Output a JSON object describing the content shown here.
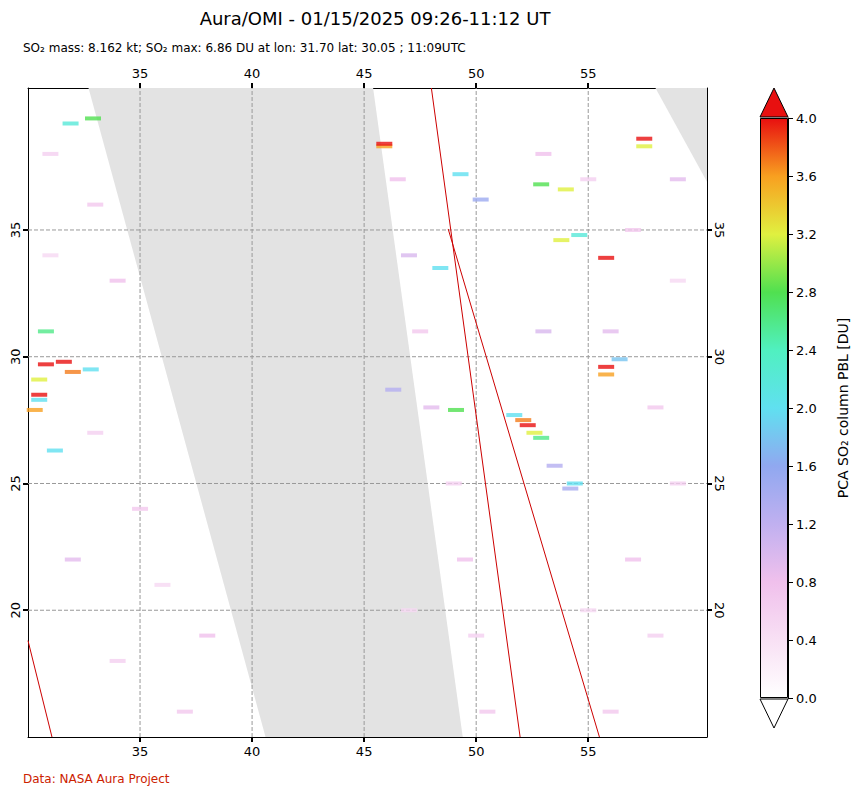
{
  "chart_data": {
    "type": "map",
    "title": "Aura/OMI - 01/15/2025 09:26-11:12 UT",
    "subtitle": "SO₂ mass: 8.162 kt; SO₂ max: 6.86 DU at lon: 31.70 lat: 30.05 ; 11:09UTC",
    "footer": "Data: NASA Aura Project",
    "xlim": [
      30,
      60.3
    ],
    "ylim": [
      15,
      40.6
    ],
    "xticks": [
      35,
      40,
      45,
      50,
      55
    ],
    "yticks": [
      20,
      25,
      30,
      35
    ],
    "grid": true,
    "cells": [
      [
        52.3,
        27.3,
        4.0
      ],
      [
        52.1,
        27.5,
        3.7
      ],
      [
        52.6,
        27.0,
        3.2
      ],
      [
        52.9,
        26.8,
        2.6
      ],
      [
        51.7,
        27.7,
        2.0
      ],
      [
        55.8,
        29.6,
        4.0
      ],
      [
        55.8,
        29.3,
        3.6
      ],
      [
        30.8,
        29.7,
        4.0
      ],
      [
        31.6,
        29.8,
        4.0
      ],
      [
        32.0,
        29.4,
        3.7
      ],
      [
        30.5,
        29.1,
        3.2
      ],
      [
        30.5,
        28.5,
        4.0
      ],
      [
        30.3,
        27.9,
        3.6
      ],
      [
        30.5,
        28.3,
        2.0
      ],
      [
        32.8,
        29.5,
        2.0
      ],
      [
        32.9,
        39.4,
        2.8
      ],
      [
        31.9,
        39.2,
        2.2
      ],
      [
        45.9,
        38.3,
        3.6
      ],
      [
        45.9,
        38.4,
        4.0
      ],
      [
        57.5,
        38.6,
        4.0
      ],
      [
        57.5,
        38.3,
        3.2
      ],
      [
        52.9,
        36.8,
        2.8
      ],
      [
        54.0,
        36.6,
        3.2
      ],
      [
        53.8,
        34.6,
        3.2
      ],
      [
        55.8,
        33.9,
        4.0
      ],
      [
        49.3,
        37.2,
        2.0
      ],
      [
        50.2,
        36.2,
        1.5
      ],
      [
        49.1,
        27.9,
        2.8
      ],
      [
        48.4,
        33.5,
        2.0
      ],
      [
        56.4,
        29.9,
        1.8
      ],
      [
        54.4,
        25.0,
        2.0
      ],
      [
        54.2,
        24.8,
        1.4
      ],
      [
        53.5,
        25.7,
        1.3
      ],
      [
        30.8,
        31.0,
        2.6
      ],
      [
        31.2,
        26.3,
        2.0
      ],
      [
        54.6,
        34.8,
        2.2
      ],
      [
        46.3,
        28.7,
        1.3
      ],
      [
        31,
        38,
        0.6
      ],
      [
        33,
        36,
        0.7
      ],
      [
        31,
        34,
        0.5
      ],
      [
        34,
        33,
        0.8
      ],
      [
        33,
        27,
        0.6
      ],
      [
        35,
        24,
        0.7
      ],
      [
        36,
        21,
        0.5
      ],
      [
        38,
        19,
        0.8
      ],
      [
        34,
        18,
        0.6
      ],
      [
        37,
        16,
        0.7
      ],
      [
        32,
        22,
        0.9
      ],
      [
        46.5,
        37,
        0.8
      ],
      [
        47,
        34,
        1.0
      ],
      [
        47.5,
        31,
        0.7
      ],
      [
        48,
        28,
        0.9
      ],
      [
        49,
        25,
        0.6
      ],
      [
        49.5,
        22,
        0.8
      ],
      [
        50,
        19,
        0.6
      ],
      [
        50.5,
        16,
        0.7
      ],
      [
        47,
        20,
        0.5
      ],
      [
        53,
        38,
        0.8
      ],
      [
        55,
        37,
        0.6
      ],
      [
        57,
        35,
        0.7
      ],
      [
        59,
        33,
        0.5
      ],
      [
        56,
        31,
        0.9
      ],
      [
        58,
        28,
        0.7
      ],
      [
        59,
        25,
        0.6
      ],
      [
        57,
        22,
        0.8
      ],
      [
        58,
        19,
        0.6
      ],
      [
        56,
        16,
        0.7
      ],
      [
        53,
        31,
        1.0
      ],
      [
        59,
        37,
        0.9
      ],
      [
        55,
        20,
        0.5
      ]
    ],
    "gaps": [
      [
        [
          32.7,
          40.6
        ],
        [
          45.4,
          40.6
        ],
        [
          49.4,
          15
        ],
        [
          40.6,
          15
        ]
      ],
      [
        [
          58.0,
          40.6
        ],
        [
          60.3,
          40.6
        ],
        [
          60.3,
          36.9
        ]
      ]
    ],
    "orbit_edges": [
      [
        [
          48.0,
          40.6
        ],
        [
          51.96,
          15
        ]
      ],
      [
        [
          48.75,
          35.04
        ],
        [
          55.5,
          15
        ]
      ],
      [
        [
          30.0,
          18.8
        ],
        [
          31.07,
          15
        ]
      ]
    ],
    "colorbar": {
      "label": "PCA SO₂ column PBL [DU]",
      "lim": [
        0,
        4
      ],
      "ticks": [
        {
          "value": 0,
          "label": "0.0"
        },
        {
          "value": 0.4,
          "label": "0.4"
        },
        {
          "value": 0.8,
          "label": "0.8"
        },
        {
          "value": 1.2,
          "label": "1.2"
        },
        {
          "value": 1.6,
          "label": "1.6"
        },
        {
          "value": 2,
          "label": "2.0"
        },
        {
          "value": 2.4,
          "label": "2.4"
        },
        {
          "value": 2.8,
          "label": "2.8"
        },
        {
          "value": 3.2,
          "label": "3.2"
        },
        {
          "value": 3.6,
          "label": "3.6"
        },
        {
          "value": 4,
          "label": "4.0"
        }
      ],
      "colors": [
        "#ffffff",
        "#f8e0f4",
        "#f0c0ec",
        "#c0b0f0",
        "#90a8f0",
        "#60e0f0",
        "#50f0c0",
        "#50e050",
        "#e0f040",
        "#f8a020",
        "#e81010"
      ]
    }
  }
}
